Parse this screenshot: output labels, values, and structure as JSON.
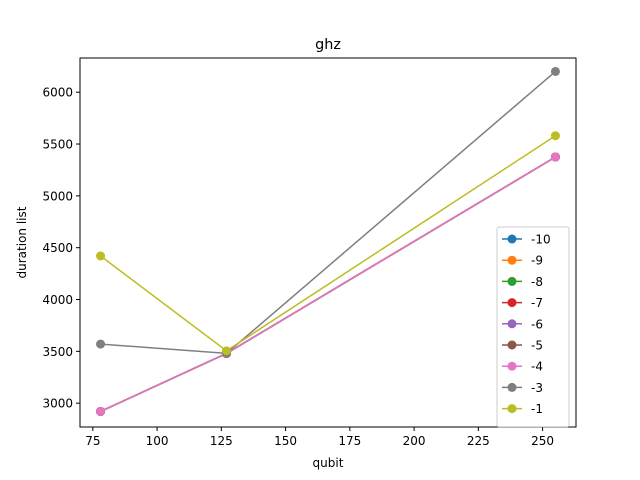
{
  "chart_data": {
    "type": "line",
    "title": "ghz",
    "xlabel": "qubit",
    "ylabel": "duration list",
    "xlim": [
      70,
      263
    ],
    "ylim": [
      2770,
      6330
    ],
    "xticks": [
      75,
      100,
      125,
      150,
      175,
      200,
      225,
      250
    ],
    "yticks": [
      3000,
      3500,
      4000,
      4500,
      5000,
      5500,
      6000
    ],
    "grid": false,
    "legend_position": "lower-right",
    "x": [
      78,
      127,
      255
    ],
    "series": [
      {
        "name": "-10",
        "color": "#1f77b4",
        "values": [
          2920,
          3480,
          5375
        ]
      },
      {
        "name": "-9",
        "color": "#ff7f0e",
        "values": [
          2920,
          3480,
          5375
        ]
      },
      {
        "name": "-8",
        "color": "#2ca02c",
        "values": [
          2920,
          3480,
          5375
        ]
      },
      {
        "name": "-7",
        "color": "#d62728",
        "values": [
          2920,
          3480,
          5375
        ]
      },
      {
        "name": "-6",
        "color": "#9467bd",
        "values": [
          2920,
          3480,
          5375
        ]
      },
      {
        "name": "-5",
        "color": "#8c564b",
        "values": [
          2920,
          3480,
          5375
        ]
      },
      {
        "name": "-4",
        "color": "#e377c2",
        "values": [
          2920,
          3480,
          5375
        ]
      },
      {
        "name": "-3",
        "color": "#7f7f7f",
        "values": [
          3570,
          3480,
          6200
        ]
      },
      {
        "name": "-1",
        "color": "#bcbd22",
        "values": [
          4420,
          3505,
          5580
        ]
      }
    ]
  }
}
